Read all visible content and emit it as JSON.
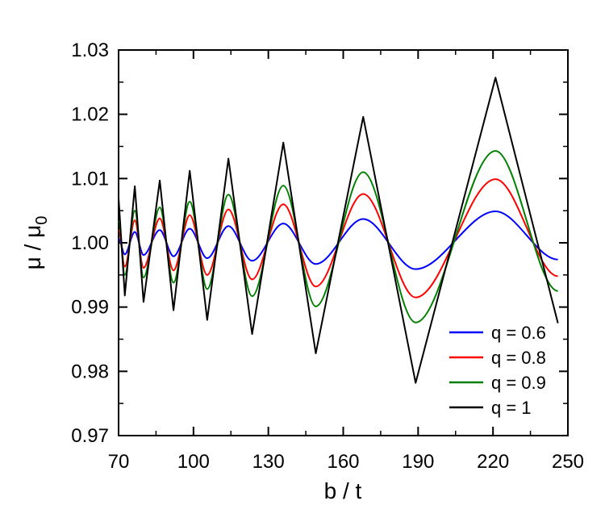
{
  "chart_data": {
    "type": "line",
    "xlabel": "b / t",
    "ylabel": "μ / μ",
    "ylabel_subscript": "0",
    "xlim": [
      70,
      250
    ],
    "ylim": [
      0.97,
      1.03
    ],
    "x_ticks": [
      70,
      100,
      130,
      160,
      190,
      220,
      250
    ],
    "x_tick_labels": [
      "70",
      "100",
      "130",
      "160",
      "190",
      "220",
      "250"
    ],
    "y_ticks": [
      0.97,
      0.98,
      0.99,
      1.0,
      1.01,
      1.02,
      1.03
    ],
    "y_tick_labels": [
      "0.97",
      "0.98",
      "0.99",
      "1.00",
      "1.01",
      "1.02",
      "1.03"
    ],
    "grid": false,
    "legend_position": "bottom-right",
    "x": [
      70,
      72.5,
      76.5,
      80,
      86.5,
      92,
      98.5,
      105.5,
      114,
      123.5,
      136,
      149,
      168,
      189,
      221,
      246
    ],
    "series": [
      {
        "name": "q = 0.6",
        "color": "#0000ff",
        "values": [
          1.0006,
          0.9982,
          1.0017,
          0.9981,
          1.002,
          0.9979,
          1.0022,
          0.9976,
          1.0026,
          0.9972,
          1.003,
          0.9967,
          1.0037,
          0.9959,
          1.0049,
          0.9974
        ]
      },
      {
        "name": "q = 0.8",
        "color": "#ff0000",
        "values": [
          1.002,
          0.9963,
          1.0035,
          0.9961,
          1.0038,
          0.9957,
          1.0043,
          0.995,
          1.0052,
          0.9943,
          1.006,
          0.9932,
          1.0076,
          0.9915,
          1.0099,
          0.9948
        ]
      },
      {
        "name": "q = 0.9",
        "color": "#008000",
        "values": [
          1.0034,
          0.995,
          1.005,
          0.9946,
          1.0055,
          0.9938,
          1.0064,
          0.9928,
          1.0075,
          0.9917,
          1.0089,
          0.9901,
          1.011,
          0.9876,
          1.0143,
          0.9925
        ]
      },
      {
        "name": "q = 1",
        "color": "#000000",
        "values": [
          1.007,
          0.9918,
          1.0088,
          0.9908,
          1.0097,
          0.9895,
          1.0112,
          0.988,
          1.0131,
          0.9858,
          1.0156,
          0.9828,
          1.0196,
          0.9782,
          1.0257,
          0.9875
        ]
      }
    ]
  }
}
